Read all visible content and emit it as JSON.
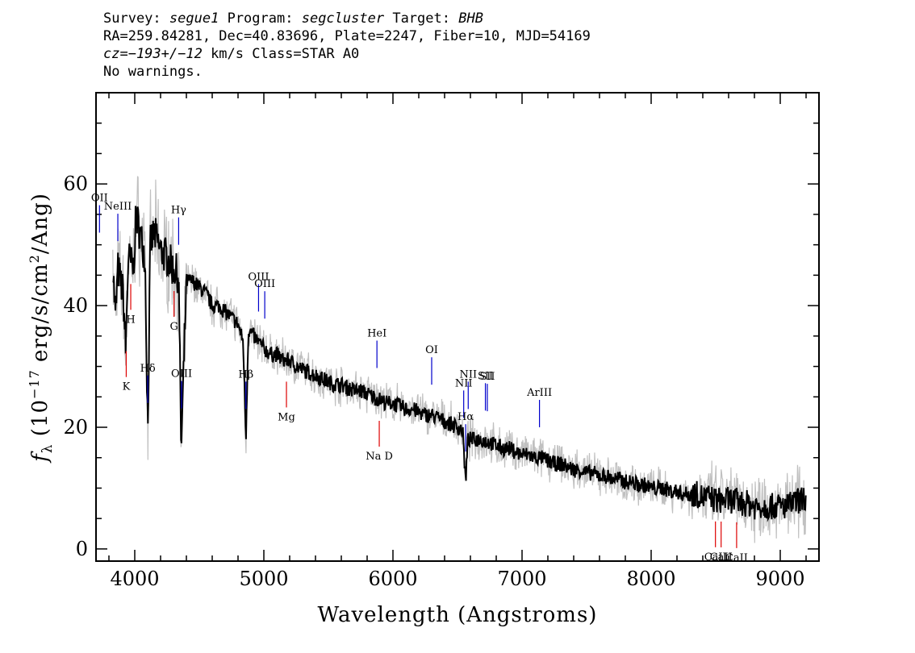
{
  "header": {
    "survey_label": "Survey:",
    "survey": "segue1",
    "program_label": "Program:",
    "program": "segcluster",
    "target_label": "Target:",
    "target": "BHB",
    "line2": "RA=259.84281, Dec=40.83696, Plate=2247, Fiber=10, MJD=54169",
    "cz": "cz=−193+/−12",
    "cz_rest": " km/s Class=STAR A0",
    "line4": "No warnings."
  },
  "chart_data": {
    "type": "line",
    "xlabel": "Wavelength (Angstroms)",
    "ylabel_pre": "f",
    "ylabel_sub": "λ",
    "ylabel_mid": " (10",
    "ylabel_sup": "−17",
    "ylabel_mid2": " erg/s/cm",
    "ylabel_sup2": "2",
    "ylabel_post": "/Ang)",
    "xlim": [
      3700,
      9300
    ],
    "ylim": [
      -2,
      75
    ],
    "xticks": [
      4000,
      5000,
      6000,
      7000,
      8000,
      9000
    ],
    "yticks": [
      0,
      20,
      40,
      60
    ],
    "series": [
      {
        "role": "flux",
        "color": "#000000",
        "x": [
          3830,
          3850,
          3870,
          3890,
          3910,
          3930,
          3950,
          3970,
          3990,
          4010,
          4040,
          4080,
          4101,
          4120,
          4150,
          4200,
          4250,
          4300,
          4340,
          4360,
          4400,
          4450,
          4500,
          4550,
          4600,
          4650,
          4700,
          4750,
          4800,
          4840,
          4861,
          4880,
          4920,
          4960,
          5000,
          5050,
          5100,
          5150,
          5200,
          5250,
          5300,
          5350,
          5400,
          5450,
          5500,
          5550,
          5600,
          5650,
          5700,
          5750,
          5800,
          5850,
          5900,
          5950,
          6000,
          6050,
          6100,
          6150,
          6200,
          6250,
          6300,
          6350,
          6400,
          6450,
          6500,
          6540,
          6563,
          6580,
          6620,
          6680,
          6750,
          6800,
          6850,
          6900,
          6950,
          7000,
          7050,
          7100,
          7150,
          7200,
          7250,
          7300,
          7350,
          7400,
          7450,
          7500,
          7550,
          7600,
          7650,
          7700,
          7750,
          7800,
          7850,
          7900,
          7950,
          8000,
          8050,
          8100,
          8150,
          8200,
          8250,
          8300,
          8350,
          8400,
          8450,
          8500,
          8550,
          8600,
          8650,
          8700,
          8750,
          8800,
          8850,
          8900,
          8950,
          9000,
          9050,
          9100,
          9150,
          9200
        ],
        "y": [
          47,
          38,
          46,
          44,
          42,
          33,
          48,
          47,
          46,
          55,
          52,
          48,
          19,
          50,
          52,
          49,
          48,
          46,
          45,
          16,
          44,
          44,
          43,
          42,
          40,
          40,
          39,
          38,
          37,
          34,
          18,
          36,
          35,
          34,
          33,
          32,
          32,
          31,
          31,
          30,
          29.5,
          29,
          28.5,
          28,
          27.5,
          27,
          27,
          26.5,
          26,
          26,
          25.5,
          25,
          24.5,
          24,
          24,
          23.5,
          23,
          23,
          22.5,
          22,
          22,
          21.5,
          21,
          20.5,
          20,
          19.5,
          11,
          18,
          18,
          18,
          17.5,
          17,
          16.5,
          16.5,
          16,
          15.5,
          15.5,
          15,
          15,
          14.5,
          14,
          14,
          13.5,
          13,
          13,
          12.5,
          12.5,
          12,
          12,
          11.5,
          11.5,
          11,
          11,
          10.5,
          10.5,
          10,
          10,
          10,
          9.5,
          9.5,
          9,
          9,
          9,
          8.5,
          8.5,
          8,
          8,
          8,
          8,
          7.5,
          7.5,
          7,
          7,
          7,
          7,
          7,
          7,
          7.5,
          8,
          8.5
        ]
      },
      {
        "role": "error-envelope",
        "color": "#c0c0c0"
      }
    ],
    "emission_lines": [
      {
        "name": "OII",
        "x": 3727
      },
      {
        "name": "NeIII",
        "x": 3869
      },
      {
        "name": "Hδ",
        "x": 4101
      },
      {
        "name": "Hγ",
        "x": 4340
      },
      {
        "name": "OIII",
        "x": 4363
      },
      {
        "name": "Hβ",
        "x": 4861
      },
      {
        "name": "OIII",
        "x": 4959
      },
      {
        "name": "OIII",
        "x": 5007
      },
      {
        "name": "HeI",
        "x": 5876
      },
      {
        "name": "OI",
        "x": 6300
      },
      {
        "name": "NII",
        "x": 6548
      },
      {
        "name": "Hα",
        "x": 6563
      },
      {
        "name": "NII",
        "x": 6583
      },
      {
        "name": "SII",
        "x": 6716
      },
      {
        "name": "SII",
        "x": 6731
      },
      {
        "name": "ArIII",
        "x": 7135
      }
    ],
    "absorption_lines": [
      {
        "name": "K",
        "x": 3934
      },
      {
        "name": "H",
        "x": 3969
      },
      {
        "name": "G",
        "x": 4304
      },
      {
        "name": "Mg",
        "x": 5175
      },
      {
        "name": "Na D",
        "x": 5894
      },
      {
        "name": "CaII",
        "x": 8498
      },
      {
        "name": "CaII",
        "x": 8542
      },
      {
        "name": "CaII",
        "x": 8662
      }
    ],
    "colors": {
      "emission": "#0000cc",
      "absorption": "#dd0000",
      "flux": "#000000",
      "error": "#c0c0c0"
    }
  }
}
